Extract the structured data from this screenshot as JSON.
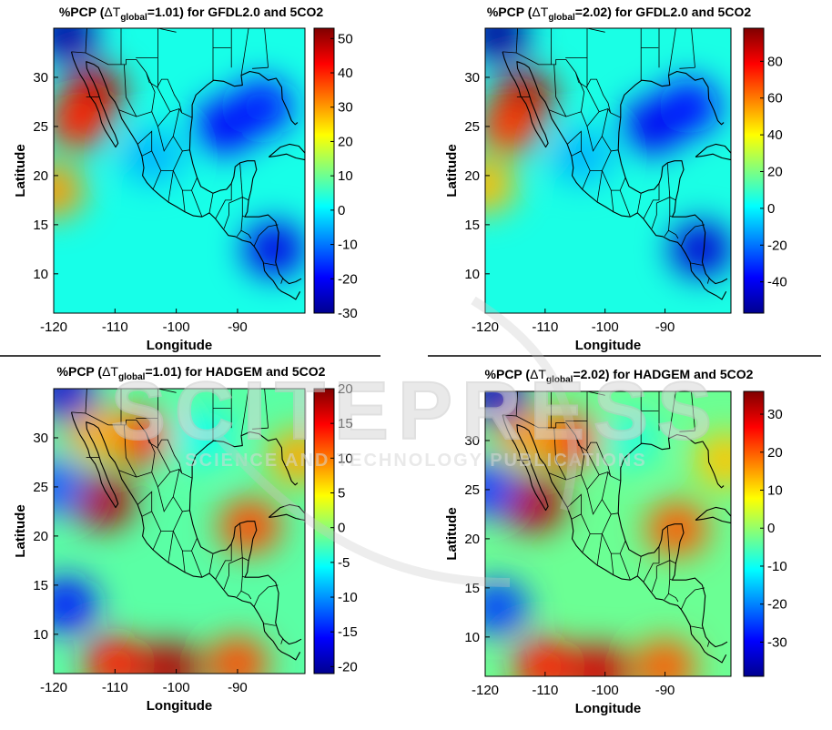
{
  "watermark": {
    "big": "SCITEPRESS",
    "small": "SCIENCE AND TECHNOLOGY PUBLICATIONS"
  },
  "colors": {
    "dark_blue": "#00008f",
    "blue": "#0050ff",
    "cyan": "#00dfff",
    "yellow": "#ffff00",
    "orange": "#ff8f00",
    "red": "#df0000",
    "dark_red": "#800000"
  },
  "chart_data": [
    {
      "type": "heatmap",
      "title_prefix": "%PCP (",
      "title_delta": "ΔT",
      "title_sub": "global",
      "title_value": "=1.01",
      "title_suffix": ") for GFDL2.0 and 5CO2",
      "xlabel": "Longitude",
      "ylabel": "Latitude",
      "xticks": [
        -120,
        -110,
        -100,
        -90
      ],
      "yticks": [
        10,
        15,
        20,
        25,
        30
      ],
      "xlim": [
        -120,
        -79
      ],
      "ylim": [
        6,
        35
      ],
      "colorbar": {
        "min": -30,
        "max": 53,
        "ticks": [
          -30,
          -20,
          -10,
          0,
          10,
          20,
          30,
          40,
          50
        ]
      },
      "blobs": [
        {
          "lon": -113.5,
          "lat": 28.5,
          "value": 48
        },
        {
          "lon": -116,
          "lat": 25.5,
          "value": 40
        },
        {
          "lon": -120,
          "lat": 18.5,
          "value": 30
        },
        {
          "lon": -92,
          "lat": 25,
          "value": -20
        },
        {
          "lon": -86,
          "lat": 27,
          "value": -18
        },
        {
          "lon": -84,
          "lat": 12.5,
          "value": -22
        },
        {
          "lon": -118,
          "lat": 34.5,
          "value": -28
        },
        {
          "lon": -104,
          "lat": 22,
          "value": -5
        }
      ],
      "background": 3
    },
    {
      "type": "heatmap",
      "title_prefix": "%PCP (",
      "title_delta": "ΔT",
      "title_sub": "global",
      "title_value": "=2.02",
      "title_suffix": ") for GFDL2.0 and 5CO2",
      "xlabel": "Longitude",
      "ylabel": "Latitude",
      "xticks": [
        -120,
        -110,
        -100,
        -90
      ],
      "yticks": [
        10,
        15,
        20,
        25,
        30
      ],
      "xlim": [
        -120,
        -79
      ],
      "ylim": [
        6,
        35
      ],
      "colorbar": {
        "min": -57,
        "max": 98,
        "ticks": [
          -40,
          -20,
          0,
          20,
          40,
          60,
          80
        ]
      },
      "blobs": [
        {
          "lon": -113.5,
          "lat": 28,
          "value": 90
        },
        {
          "lon": -116,
          "lat": 25,
          "value": 70
        },
        {
          "lon": -120,
          "lat": 19,
          "value": 50
        },
        {
          "lon": -92,
          "lat": 25,
          "value": -40
        },
        {
          "lon": -86,
          "lat": 27,
          "value": -35
        },
        {
          "lon": -84,
          "lat": 12.5,
          "value": -45
        },
        {
          "lon": -118,
          "lat": 34.5,
          "value": -55
        },
        {
          "lon": -104,
          "lat": 22,
          "value": -10
        }
      ],
      "background": 5
    },
    {
      "type": "heatmap",
      "title_prefix": "%PCP (",
      "title_delta": "ΔT",
      "title_sub": "global",
      "title_value": "=1.01",
      "title_suffix": ") for HADGEM and 5CO2",
      "xlabel": "Longitude",
      "ylabel": "Latitude",
      "xticks": [
        -120,
        -110,
        -100,
        -90
      ],
      "yticks": [
        10,
        15,
        20,
        25,
        30
      ],
      "xlim": [
        -120,
        -79
      ],
      "ylim": [
        6,
        35
      ],
      "colorbar": {
        "min": -21,
        "max": 20,
        "ticks": [
          -20,
          -15,
          -10,
          -5,
          0,
          5,
          10,
          15,
          20
        ]
      },
      "blobs": [
        {
          "lon": -112,
          "lat": 23.5,
          "value": 18
        },
        {
          "lon": -106,
          "lat": 30,
          "value": 14
        },
        {
          "lon": -113,
          "lat": 30.5,
          "value": 8
        },
        {
          "lon": -88,
          "lat": 21,
          "value": 12
        },
        {
          "lon": -101,
          "lat": 6.5,
          "value": 18
        },
        {
          "lon": -90,
          "lat": 7,
          "value": 12
        },
        {
          "lon": -110,
          "lat": 7,
          "value": 14
        },
        {
          "lon": -118,
          "lat": 13,
          "value": -15
        },
        {
          "lon": -120,
          "lat": 25,
          "value": -12
        },
        {
          "lon": -118,
          "lat": 34.5,
          "value": -18
        },
        {
          "lon": -80,
          "lat": 28,
          "value": 8
        },
        {
          "lon": -96,
          "lat": 30,
          "value": -5
        }
      ],
      "background": -2
    },
    {
      "type": "heatmap",
      "title_prefix": "%PCP (",
      "title_delta": "ΔT",
      "title_sub": "global",
      "title_value": "=2.02",
      "title_suffix": ") for HADGEM and 5CO2",
      "xlabel": "Longitude",
      "ylabel": "Latitude",
      "xticks": [
        -120,
        -110,
        -100,
        -90
      ],
      "yticks": [
        10,
        15,
        20,
        25,
        30
      ],
      "xlim": [
        -120,
        -79
      ],
      "ylim": [
        6,
        35
      ],
      "colorbar": {
        "min": -39,
        "max": 36,
        "ticks": [
          -30,
          -20,
          -10,
          0,
          10,
          20,
          30
        ]
      },
      "blobs": [
        {
          "lon": -112,
          "lat": 23.5,
          "value": 32
        },
        {
          "lon": -106,
          "lat": 30,
          "value": 26
        },
        {
          "lon": -113,
          "lat": 30.5,
          "value": 15
        },
        {
          "lon": -88,
          "lat": 21,
          "value": 20
        },
        {
          "lon": -101,
          "lat": 6.5,
          "value": 30
        },
        {
          "lon": -90,
          "lat": 7,
          "value": 20
        },
        {
          "lon": -110,
          "lat": 7,
          "value": 25
        },
        {
          "lon": -118,
          "lat": 13,
          "value": -25
        },
        {
          "lon": -120,
          "lat": 25,
          "value": -25
        },
        {
          "lon": -118,
          "lat": 34.5,
          "value": -35
        },
        {
          "lon": -80,
          "lat": 28,
          "value": 12
        },
        {
          "lon": -96,
          "lat": 30,
          "value": -8
        }
      ],
      "background": -3
    }
  ]
}
